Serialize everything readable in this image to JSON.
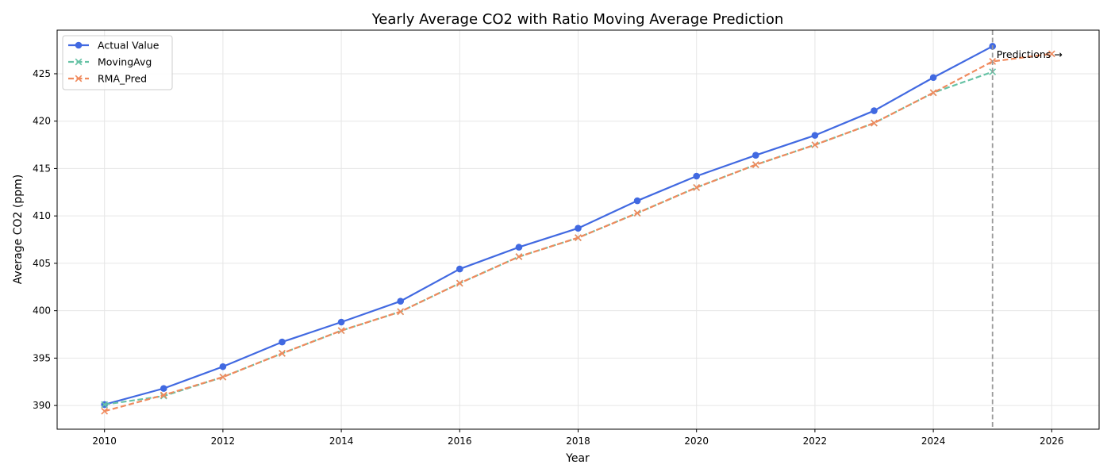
{
  "chart_data": {
    "type": "line",
    "title": "Yearly Average CO2 with Ratio Moving Average Prediction",
    "xlabel": "Year",
    "ylabel": "Average CO2 (ppm)",
    "xlim": [
      2009.2,
      2026.8
    ],
    "ylim": [
      387.5,
      429.6
    ],
    "xticks": [
      2010,
      2012,
      2014,
      2016,
      2018,
      2020,
      2022,
      2024,
      2026
    ],
    "yticks": [
      390,
      395,
      400,
      405,
      410,
      415,
      420,
      425
    ],
    "grid": true,
    "legend_position": "top-left",
    "series": [
      {
        "name": "Actual Value",
        "color": "#4169e1",
        "marker": "circle",
        "linestyle": "solid",
        "x": [
          2010,
          2011,
          2012,
          2013,
          2014,
          2015,
          2016,
          2017,
          2018,
          2019,
          2020,
          2021,
          2022,
          2023,
          2024,
          2025
        ],
        "y": [
          390.1,
          391.8,
          394.1,
          396.7,
          398.8,
          401.0,
          404.4,
          406.7,
          408.7,
          411.6,
          414.2,
          416.4,
          418.5,
          421.1,
          424.6,
          427.9
        ]
      },
      {
        "name": "MovingAvg",
        "color": "#66c2a5",
        "marker": "x",
        "linestyle": "dashed",
        "x": [
          2010,
          2011,
          2012,
          2013,
          2014,
          2015,
          2016,
          2017,
          2018,
          2019,
          2020,
          2021,
          2022,
          2023,
          2024,
          2025
        ],
        "y": [
          390.1,
          391.0,
          393.0,
          395.5,
          397.9,
          399.9,
          402.9,
          405.7,
          407.7,
          410.3,
          413.0,
          415.4,
          417.5,
          419.8,
          423.0,
          425.2
        ]
      },
      {
        "name": "RMA_Pred",
        "color": "#f08a5d",
        "marker": "x",
        "linestyle": "dashed",
        "x": [
          2010,
          2011,
          2012,
          2013,
          2014,
          2015,
          2016,
          2017,
          2018,
          2019,
          2020,
          2021,
          2022,
          2023,
          2024,
          2025,
          2026
        ],
        "y": [
          389.4,
          391.1,
          393.0,
          395.5,
          397.9,
          399.9,
          402.9,
          405.7,
          407.7,
          410.3,
          413.0,
          415.4,
          417.5,
          419.8,
          423.0,
          426.3,
          427.1
        ]
      }
    ],
    "vline": {
      "x": 2025,
      "color": "#999999",
      "linestyle": "dashed"
    },
    "annotation": {
      "text": "Predictions →",
      "x": 2025,
      "y": 427.0
    }
  }
}
